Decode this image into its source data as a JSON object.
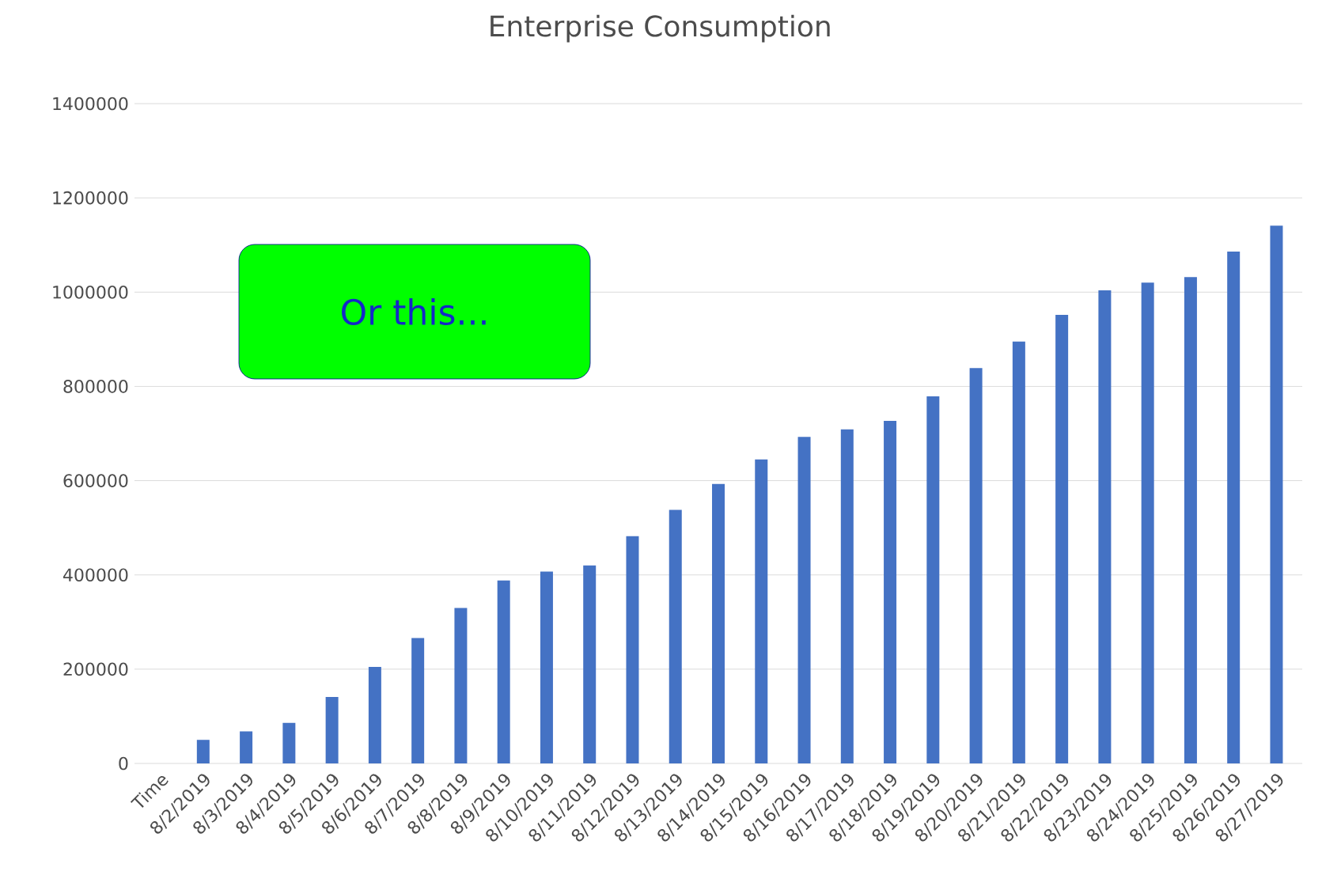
{
  "chart_data": {
    "type": "bar",
    "title": "Enterprise Consumption",
    "categories": [
      "Time",
      "8/2/2019",
      "8/3/2019",
      "8/4/2019",
      "8/5/2019",
      "8/6/2019",
      "8/7/2019",
      "8/8/2019",
      "8/9/2019",
      "8/10/2019",
      "8/11/2019",
      "8/12/2019",
      "8/13/2019",
      "8/14/2019",
      "8/15/2019",
      "8/16/2019",
      "8/17/2019",
      "8/18/2019",
      "8/19/2019",
      "8/20/2019",
      "8/21/2019",
      "8/22/2019",
      "8/23/2019",
      "8/24/2019",
      "8/25/2019",
      "8/26/2019",
      "8/27/2019"
    ],
    "values": [
      null,
      50000,
      68000,
      86000,
      141000,
      205000,
      266000,
      330000,
      388000,
      407000,
      420000,
      482000,
      538000,
      593000,
      645000,
      693000,
      709000,
      727000,
      779000,
      839000,
      895000,
      952000,
      1004000,
      1020000,
      1032000,
      1086000,
      1141000
    ],
    "color": "#4472c4",
    "ylim": [
      0,
      1400000
    ],
    "yticks": [
      0,
      200000,
      400000,
      600000,
      800000,
      1000000,
      1200000,
      1400000
    ],
    "grid": "y",
    "annotations": [
      "Or this..."
    ]
  }
}
